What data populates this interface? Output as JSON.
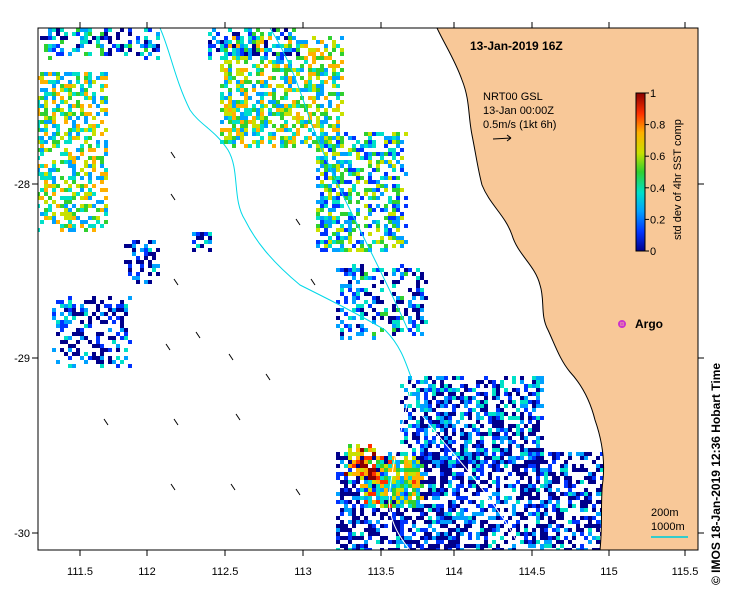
{
  "title": "13-Jan-2019 16Z",
  "product": {
    "line1": "NRT00 GSL",
    "line2": "13-Jan 00:00Z",
    "line3": "0.5m/s (1kt 6h)"
  },
  "colorbar": {
    "label": "std dev of 4hr SST comp",
    "ticks": [
      "0",
      "0.2",
      "0.4",
      "0.6",
      "0.8",
      "1"
    ],
    "colors": [
      "#00008b",
      "#0033ff",
      "#00a0ff",
      "#00e0c8",
      "#30d030",
      "#c8e000",
      "#ffb000",
      "#ff3000",
      "#8b0000"
    ]
  },
  "x_axis": {
    "ticks": [
      "111.5",
      "112",
      "112.5",
      "113",
      "113.5",
      "114",
      "114.5",
      "115",
      "115.5"
    ]
  },
  "y_axis": {
    "ticks": [
      "-28",
      "-29",
      "-30"
    ]
  },
  "argo": {
    "label": "Argo",
    "color": "#cc33cc"
  },
  "scale": {
    "line1": "200m",
    "line2": "1000m",
    "color": "#33cccc"
  },
  "credit": "© IMOS 18-Jan-2019 12:36 Hobart Time",
  "colors": {
    "land": "#f8c898",
    "depth_contour": "#00d8e8",
    "isobath": "#ffffff"
  }
}
